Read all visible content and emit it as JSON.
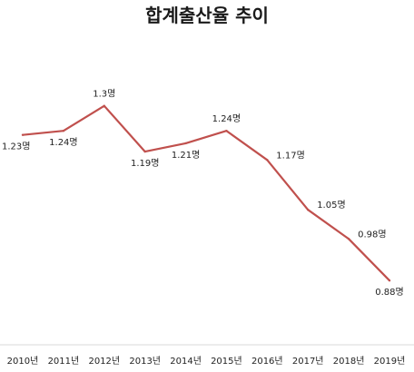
{
  "chart_data": {
    "type": "line",
    "title": "합계출산율 추이",
    "xlabel": "",
    "ylabel": "",
    "categories": [
      "2010년",
      "2011년",
      "2012년",
      "2013년",
      "2014년",
      "2015년",
      "2016년",
      "2017년",
      "2018년",
      "2019년"
    ],
    "series": [
      {
        "values": [
          1.23,
          1.24,
          1.3,
          1.19,
          1.21,
          1.24,
          1.17,
          1.05,
          0.98,
          0.88
        ],
        "color": "#c0504d"
      }
    ],
    "data_labels": [
      "1.23명",
      "1.24명",
      "1.3명",
      "1.19명",
      "1.21명",
      "1.24명",
      "1.17명",
      "1.05명",
      "0.98명",
      "0.88명"
    ],
    "ylim": [
      0.78,
      1.38
    ],
    "grid": false,
    "legend": "none"
  }
}
